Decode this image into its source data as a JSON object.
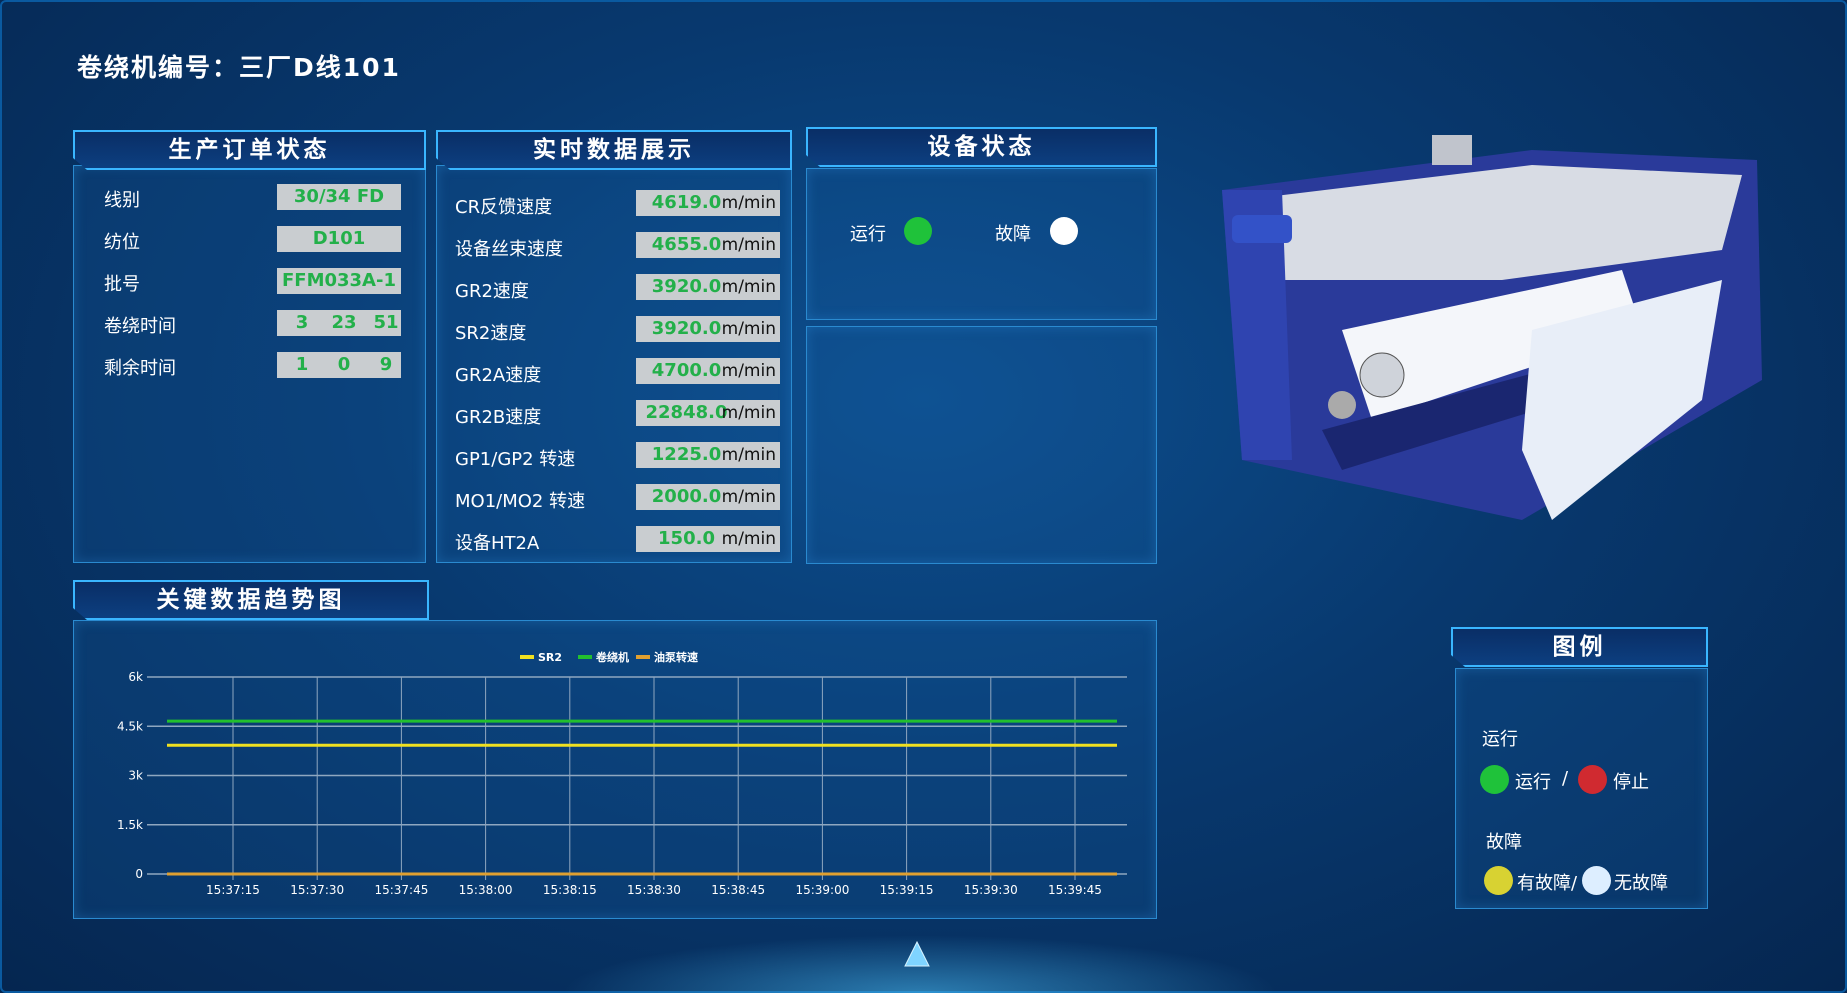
{
  "title": "卷绕机编号：三厂D线101",
  "order_panel": {
    "title": "生产订单状态",
    "rows": [
      {
        "label": "线别",
        "value": "30/34 FD"
      },
      {
        "label": "纺位",
        "value": "D101"
      },
      {
        "label": "批号",
        "value": "FFM033A-1"
      },
      {
        "label": "卷绕时间",
        "parts": [
          "3",
          "23",
          "51"
        ]
      },
      {
        "label": "剩余时间",
        "parts": [
          "1",
          "0",
          "9"
        ]
      }
    ]
  },
  "realtime_panel": {
    "title": "实时数据展示",
    "unit": "m/min",
    "rows": [
      {
        "label": "CR反馈速度",
        "value": "4619.0"
      },
      {
        "label": "设备丝束速度",
        "value": "4655.0"
      },
      {
        "label": "GR2速度",
        "value": "3920.0"
      },
      {
        "label": "SR2速度",
        "value": "3920.0"
      },
      {
        "label": "GR2A速度",
        "value": "4700.0"
      },
      {
        "label": "GR2B速度",
        "value": "22848.0"
      },
      {
        "label": "GP1/GP2 转速",
        "value": "1225.0"
      },
      {
        "label": "MO1/MO2 转速",
        "value": "2000.0"
      },
      {
        "label": "设备HT2A",
        "value": "150.0"
      }
    ]
  },
  "status_panel": {
    "title": "设备状态",
    "run_label": "运行",
    "run_color": "#1fc23a",
    "fault_label": "故障",
    "fault_color": "#ffffff"
  },
  "legend_panel": {
    "title": "图例",
    "run_heading": "运行",
    "run_on": "运行",
    "sep": "/",
    "run_off": "停止",
    "fault_heading": "故障",
    "fault_yes": "有故障/",
    "fault_no": "无故障",
    "colors": {
      "run_on": "#1fc23a",
      "run_off": "#d02a30",
      "fault_yes": "#d8d232",
      "fault_no": "#ddeeff"
    }
  },
  "chart_data": {
    "type": "line",
    "title": "关键数据趋势图",
    "x_ticks": [
      "15:37:15",
      "15:37:30",
      "15:37:45",
      "15:38:00",
      "15:38:15",
      "15:38:30",
      "15:38:45",
      "15:39:00",
      "15:39:15",
      "15:39:30",
      "15:39:45"
    ],
    "y_ticks": [
      "0",
      "1.5k",
      "3k",
      "4.5k",
      "6k"
    ],
    "ylim": [
      0,
      6000
    ],
    "grid": true,
    "legend": "top-center",
    "series": [
      {
        "name": "SR2",
        "color": "#f0e020",
        "value": 3920
      },
      {
        "name": "卷绕机",
        "color": "#22c02e",
        "value": 4655
      },
      {
        "name": "油泵转速",
        "color": "#e0a030",
        "value": 0
      }
    ]
  }
}
